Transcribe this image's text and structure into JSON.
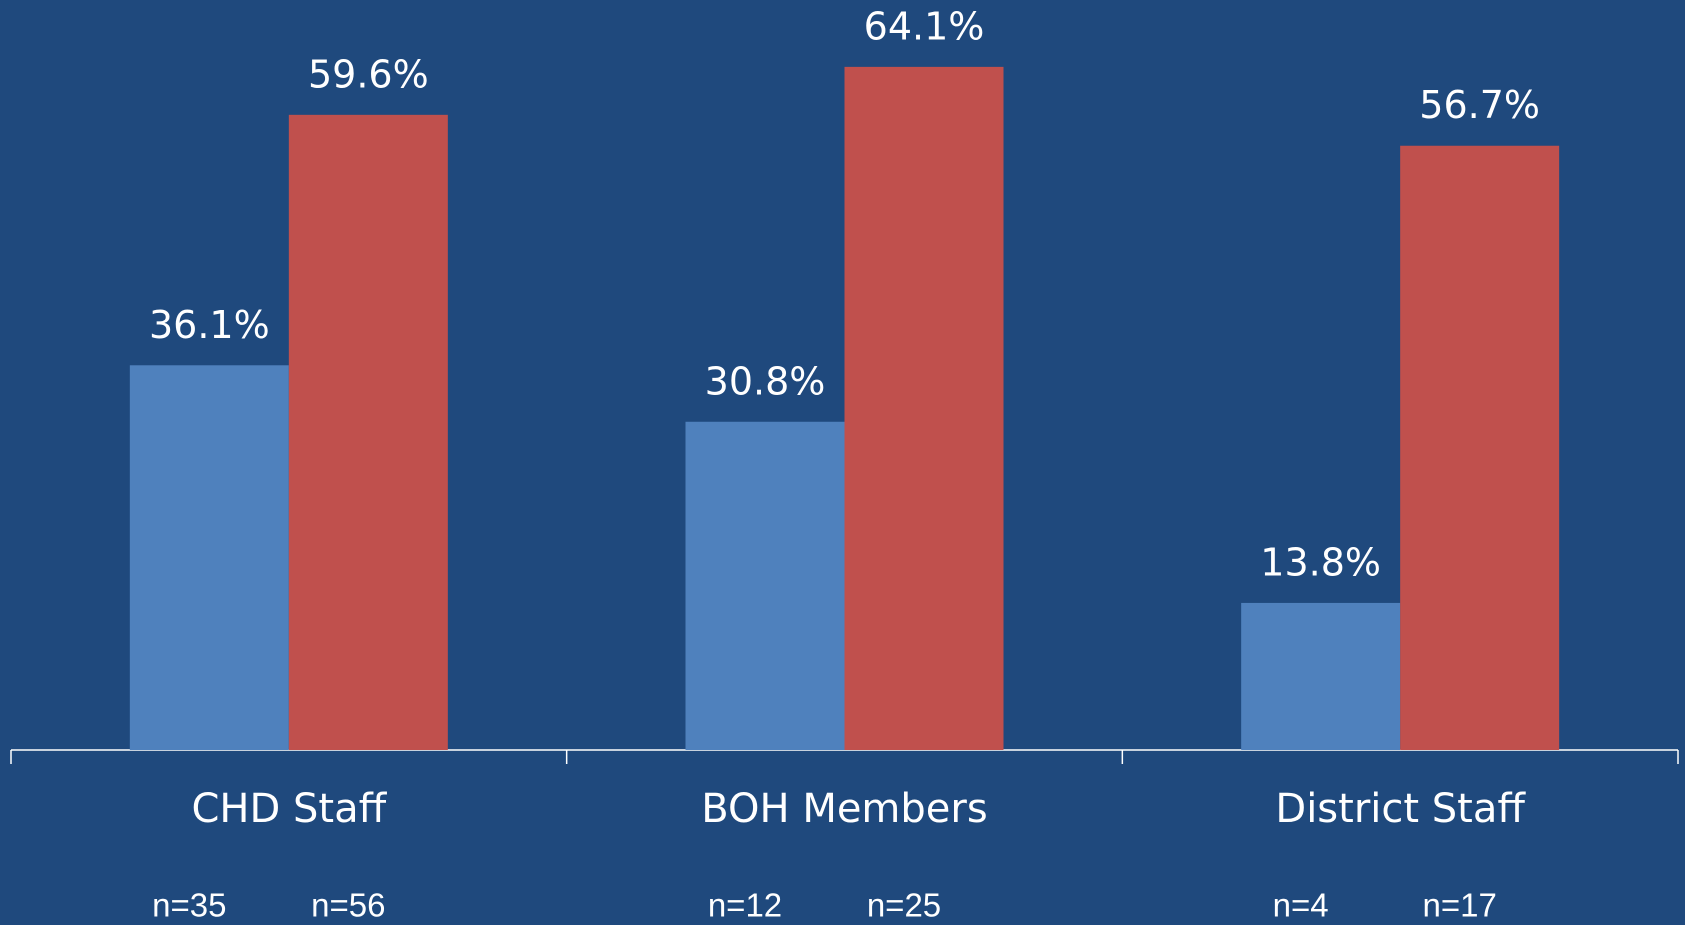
{
  "chart_data": {
    "type": "bar",
    "categories": [
      "CHD Staff",
      "BOH Members",
      "District Staff"
    ],
    "series": [
      {
        "color": "#4f81bd",
        "values": [
          36.1,
          30.8,
          13.8
        ],
        "value_labels": [
          "36.1%",
          "30.8%",
          "13.8%"
        ],
        "n_labels": [
          "n=35",
          "n=12",
          "n=4"
        ]
      },
      {
        "color": "#c0504d",
        "values": [
          59.6,
          64.1,
          56.7
        ],
        "value_labels": [
          "59.6%",
          "64.1%",
          "56.7%"
        ],
        "n_labels": [
          "n=56",
          "n=25",
          "n=17"
        ]
      }
    ],
    "ylim": [
      0,
      70
    ],
    "background": "#1f497d"
  }
}
